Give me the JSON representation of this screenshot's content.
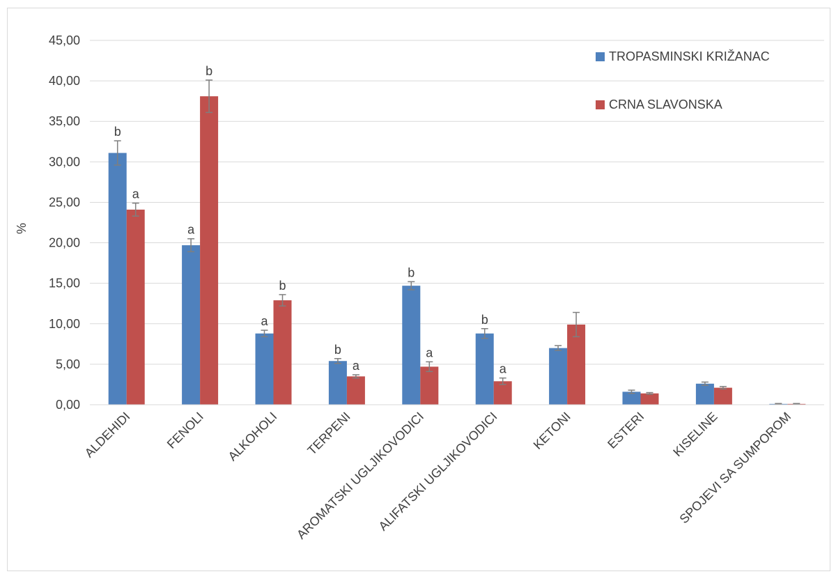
{
  "chart_data": {
    "type": "bar",
    "title": "",
    "xlabel": "",
    "ylabel": "%",
    "ylim": [
      0,
      45
    ],
    "yticks": [
      "0,00",
      "5,00",
      "10,00",
      "15,00",
      "20,00",
      "25,00",
      "30,00",
      "35,00",
      "40,00",
      "45,00"
    ],
    "grid": true,
    "legend_position": "top-right",
    "categories": [
      "ALDEHIDI",
      "FENOLI",
      "ALKOHOLI",
      "TERPENI",
      "AROMATSKI UGLJIKOVODICI",
      "ALIFATSKI UGLJIKOVODICI",
      "KETONI",
      "ESTERI",
      "KISELINE",
      "SPOJEVI SA SUMPOROM"
    ],
    "series": [
      {
        "name": "TROPASMINSKI KRIŽANAC",
        "color": "#4f81bd",
        "values": [
          31.1,
          19.7,
          8.8,
          5.4,
          14.7,
          8.8,
          7.0,
          1.6,
          2.6,
          0.1
        ],
        "errors": [
          1.5,
          0.8,
          0.4,
          0.3,
          0.5,
          0.6,
          0.3,
          0.2,
          0.2,
          0.05
        ],
        "labels": [
          "b",
          "a",
          "a",
          "b",
          "b",
          "b",
          "",
          "",
          "",
          ""
        ]
      },
      {
        "name": "CRNA SLAVONSKA",
        "color": "#c0504d",
        "values": [
          24.1,
          38.1,
          12.9,
          3.5,
          4.7,
          2.9,
          9.9,
          1.4,
          2.1,
          0.1
        ],
        "errors": [
          0.8,
          2.0,
          0.7,
          0.2,
          0.6,
          0.4,
          1.5,
          0.1,
          0.15,
          0.05
        ],
        "labels": [
          "a",
          "b",
          "b",
          "a",
          "a",
          "a",
          "",
          "",
          "",
          ""
        ]
      }
    ]
  }
}
